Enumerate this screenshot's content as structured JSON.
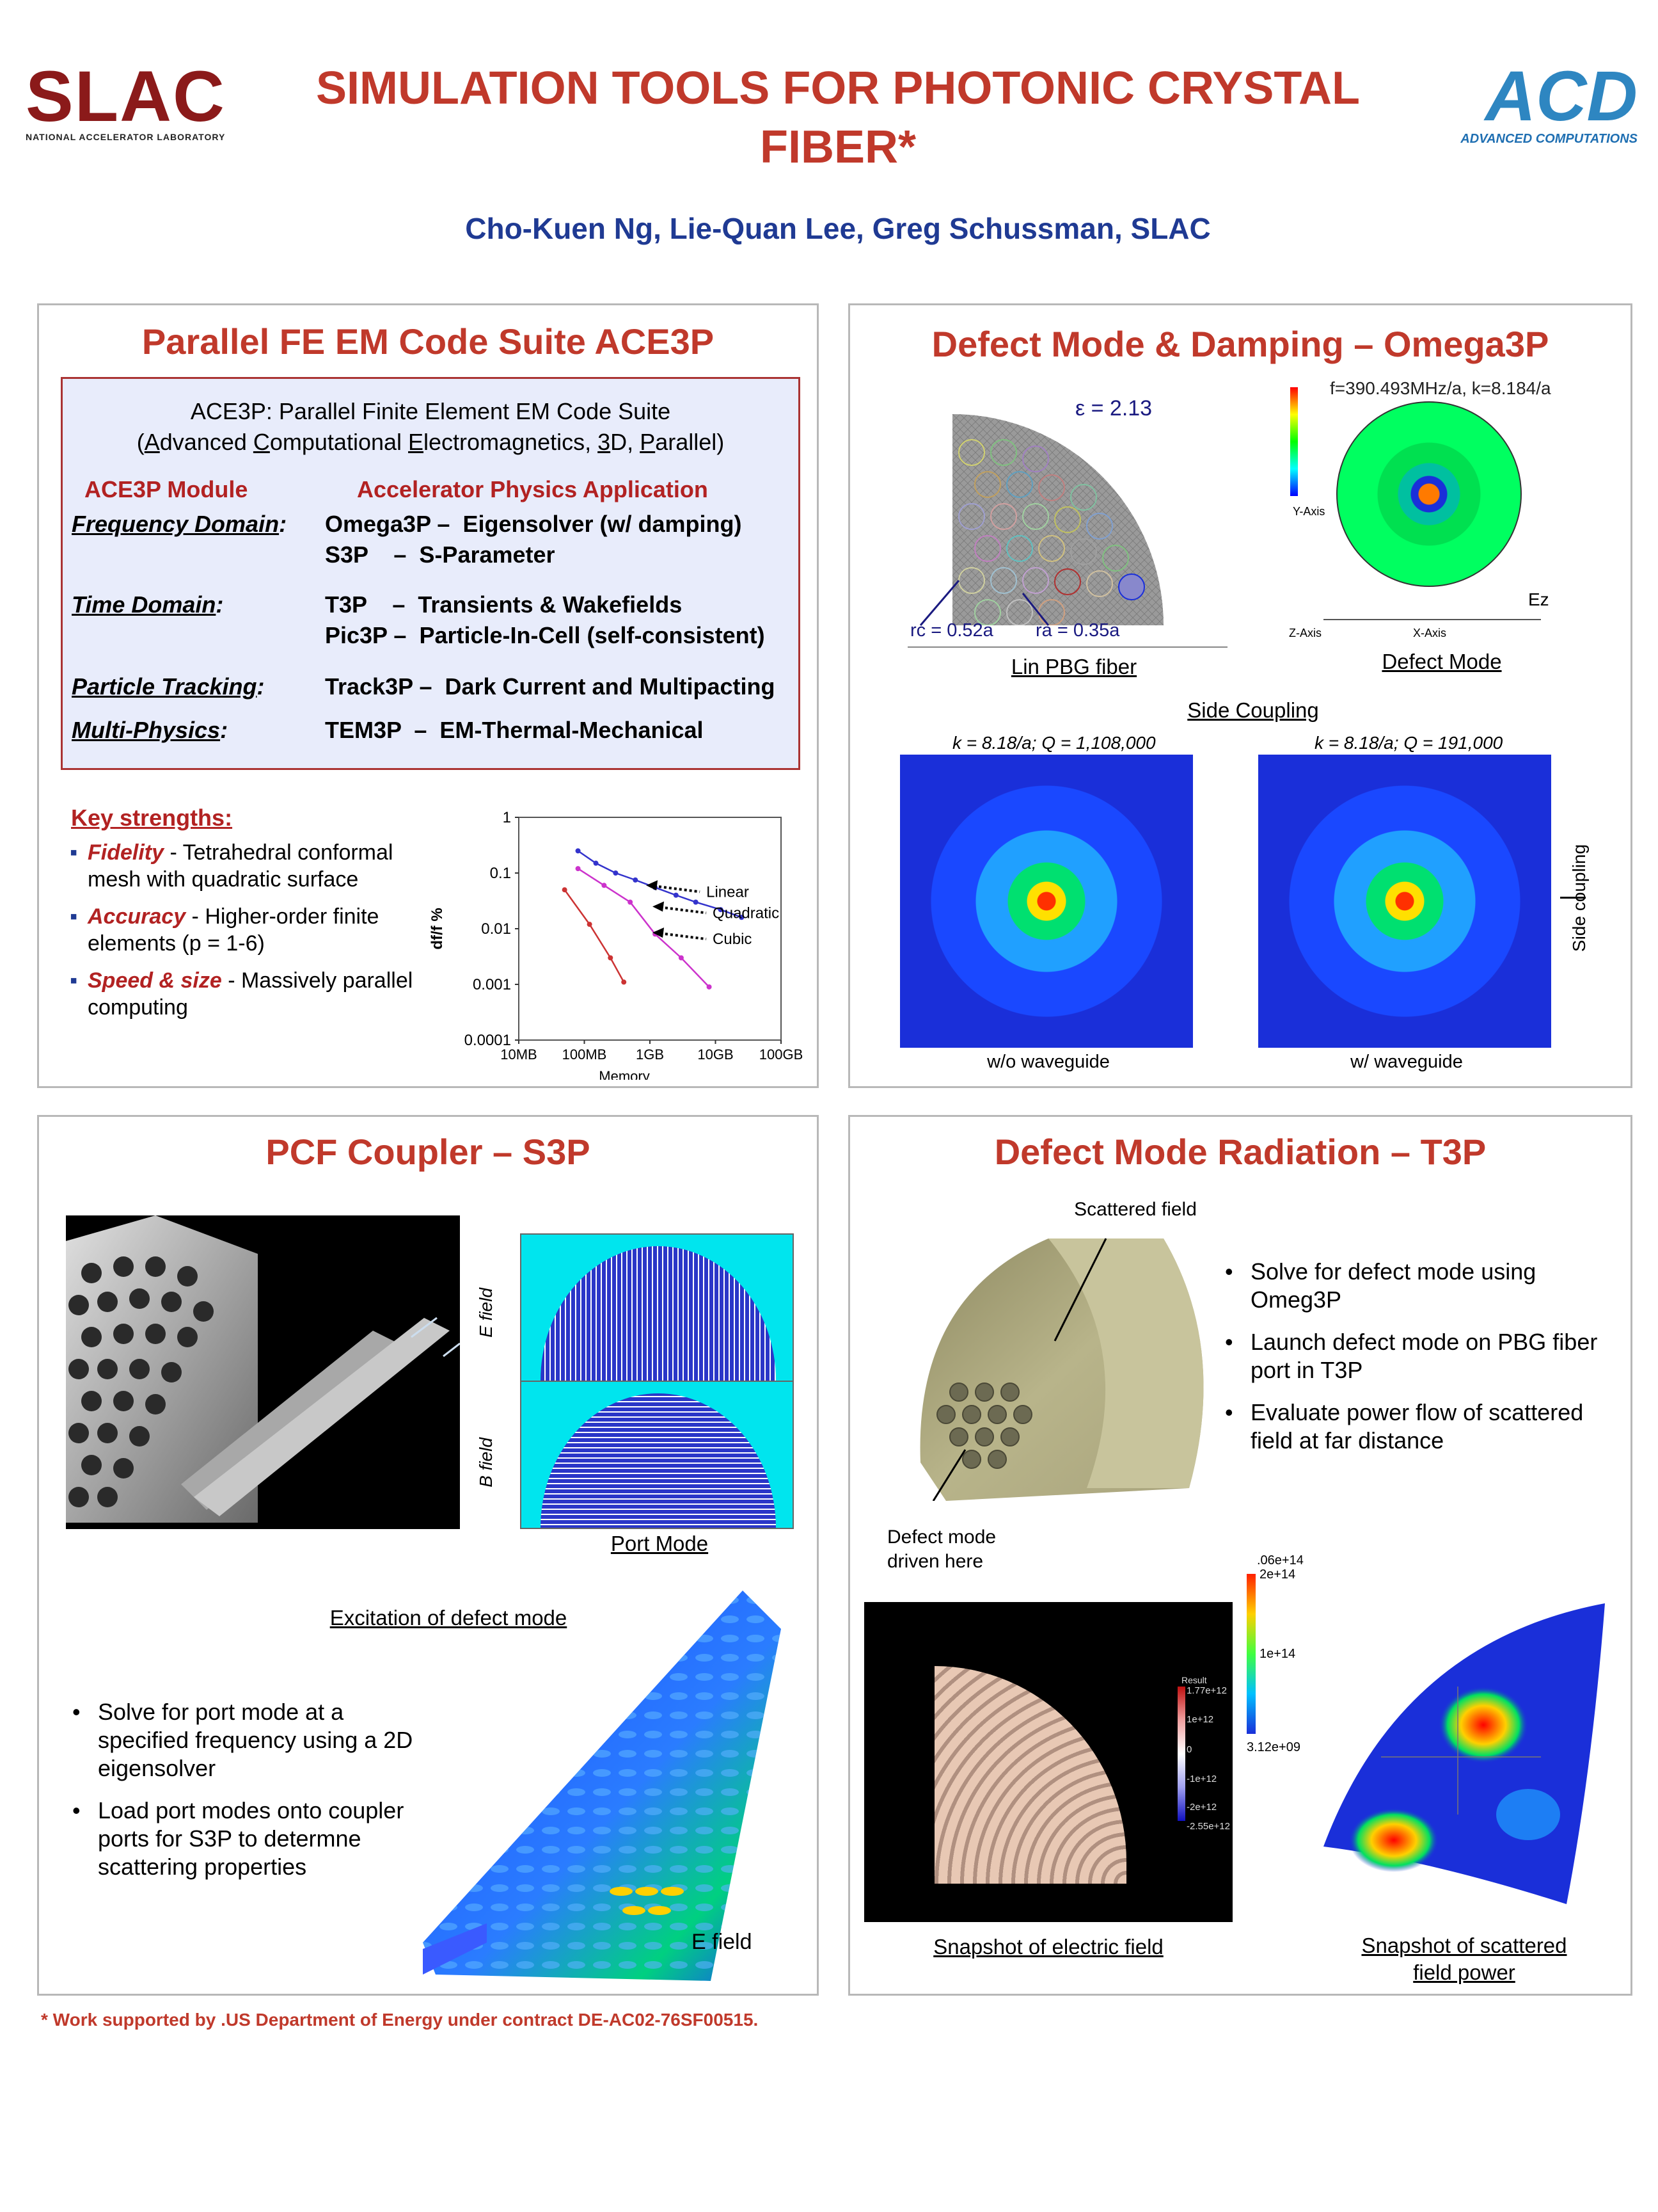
{
  "header": {
    "slac_logo": "SLAC",
    "slac_sub": "NATIONAL ACCELERATOR LABORATORY",
    "title_line1": "SIMULATION TOOLS FOR PHOTONIC CRYSTAL",
    "title_line2": "FIBER*",
    "authors": "Cho-Kuen Ng, Lie-Quan Lee, Greg Schussman, SLAC",
    "acd_logo": "ACD",
    "acd_sub": "ADVANCED COMPUTATIONS"
  },
  "panel1": {
    "title": "Parallel FE EM Code Suite ACE3P",
    "box_title1": "ACE3P: Parallel Finite Element EM Code Suite",
    "box_title2_parts": [
      "(",
      "A",
      "dvanced ",
      "C",
      "omputational ",
      "E",
      "lectromagnetics, ",
      "3",
      "D, ",
      "P",
      "arallel)"
    ],
    "col_module": "ACE3P Module",
    "col_app": "Accelerator Physics Application",
    "rows": [
      {
        "domain": "Frequency Domain",
        "apps": [
          "Omega3P –  Eigensolver (w/ damping)",
          "S3P    –  S-Parameter"
        ]
      },
      {
        "domain": "Time Domain",
        "apps": [
          "T3P    –  Transients & Wakefields",
          "Pic3P –  Particle-In-Cell (self-consistent)"
        ]
      },
      {
        "domain": "Particle Tracking",
        "apps": [
          "Track3P –  Dark Current and Multipacting"
        ]
      },
      {
        "domain": "Multi-Physics",
        "apps": [
          "TEM3P  –  EM-Thermal-Mechanical"
        ]
      }
    ],
    "strengths_title": "Key strengths:",
    "strengths": [
      {
        "key": "Fidelity",
        "text": " - Tetrahedral conformal mesh with quadratic surface"
      },
      {
        "key": "Accuracy",
        "text": " - Higher-order finite elements (p = 1-6)"
      },
      {
        "key": "Speed & size",
        "text": " - Massively parallel computing"
      }
    ]
  },
  "chart_data": {
    "type": "line",
    "title": "",
    "xlabel": "Memory",
    "ylabel": "df/f %",
    "x_scale": "log",
    "y_scale": "log",
    "x_ticks": [
      "10MB",
      "100MB",
      "1GB",
      "10GB",
      "100GB"
    ],
    "y_ticks": [
      "1",
      "0.1",
      "0.01",
      "0.001",
      "0.0001"
    ],
    "ylim": [
      0.0001,
      1
    ],
    "series": [
      {
        "name": "Linear",
        "color": "#3333cc",
        "marker": "diamond",
        "x_mb": [
          80,
          150,
          300,
          600,
          1200,
          2500,
          5000,
          12000,
          25000
        ],
        "y": [
          0.25,
          0.15,
          0.1,
          0.075,
          0.055,
          0.04,
          0.03,
          0.022,
          0.016
        ]
      },
      {
        "name": "Quadratic",
        "color": "#cc33cc",
        "marker": "square",
        "x_mb": [
          80,
          200,
          500,
          1200,
          3000,
          8000
        ],
        "y": [
          0.12,
          0.06,
          0.03,
          0.008,
          0.003,
          0.0009
        ]
      },
      {
        "name": "Cubic",
        "color": "#cc3333",
        "marker": "triangle",
        "x_mb": [
          50,
          120,
          250,
          400
        ],
        "y": [
          0.05,
          0.012,
          0.003,
          0.0011
        ]
      }
    ]
  },
  "panel2": {
    "title": "Defect Mode & Damping – Omega3P",
    "eps": "ε = 2.13",
    "rc": "rc = 0.52a",
    "ra": "ra = 0.35a",
    "lin_caption": "Lin PBG fiber",
    "defect_freq": "f=390.493MHz/a, k=8.184/a",
    "ez": "Ez",
    "yaxis": "Y-Axis",
    "xaxis": "X-Axis",
    "zaxis": "Z-Axis",
    "defect_caption": "Defect Mode",
    "side_title": "Side Coupling",
    "k_left": "k = 8.18/a; Q = 1,108,000",
    "k_right": "k = 8.18/a; Q = 191,000",
    "wo_caption": "w/o waveguide",
    "w_caption": "w/ waveguide",
    "side_label": "Side coupling"
  },
  "panel3": {
    "title": "PCF Coupler – S3P",
    "e_field": "E field",
    "b_field": "B field",
    "port_caption": "Port Mode",
    "excitation_caption": "Excitation of defect mode",
    "bullets": [
      "Solve for port mode at a specified frequency using a 2D eigensolver",
      "Load port modes onto coupler ports for S3P to determne scattering properties"
    ],
    "efield_label": "E field"
  },
  "panel4": {
    "title": "Defect Mode Radiation – T3P",
    "scattered": "Scattered field",
    "defect_driven": "Defect mode driven here",
    "bullets": [
      "Solve for defect mode using Omeg3P",
      "Launch defect mode on PBG fiber port in T3P",
      "Evaluate power flow of scattered field at far distance"
    ],
    "scale_top": ".06e+14",
    "scale_2": "2e+14",
    "scale_1": "1e+14",
    "scale_min": "3.12e+09",
    "result_label": "Result",
    "result_vals": [
      "1.77e+12",
      "1e+12",
      "0",
      "-1e+12",
      "-2e+12",
      "-2.55e+12"
    ],
    "snap_e": "Snapshot of electric field",
    "snap_s1": "Snapshot of scattered",
    "snap_s2": "field power"
  },
  "footer": "* Work supported by .US Department of Energy under contract DE-AC02-76SF00515.",
  "colors": {
    "title_red": "#c0392b",
    "author_blue": "#1f3a93",
    "box_bg": "#e8ecfb",
    "box_border": "#a33",
    "sim_blue": "#1a2fd9"
  }
}
